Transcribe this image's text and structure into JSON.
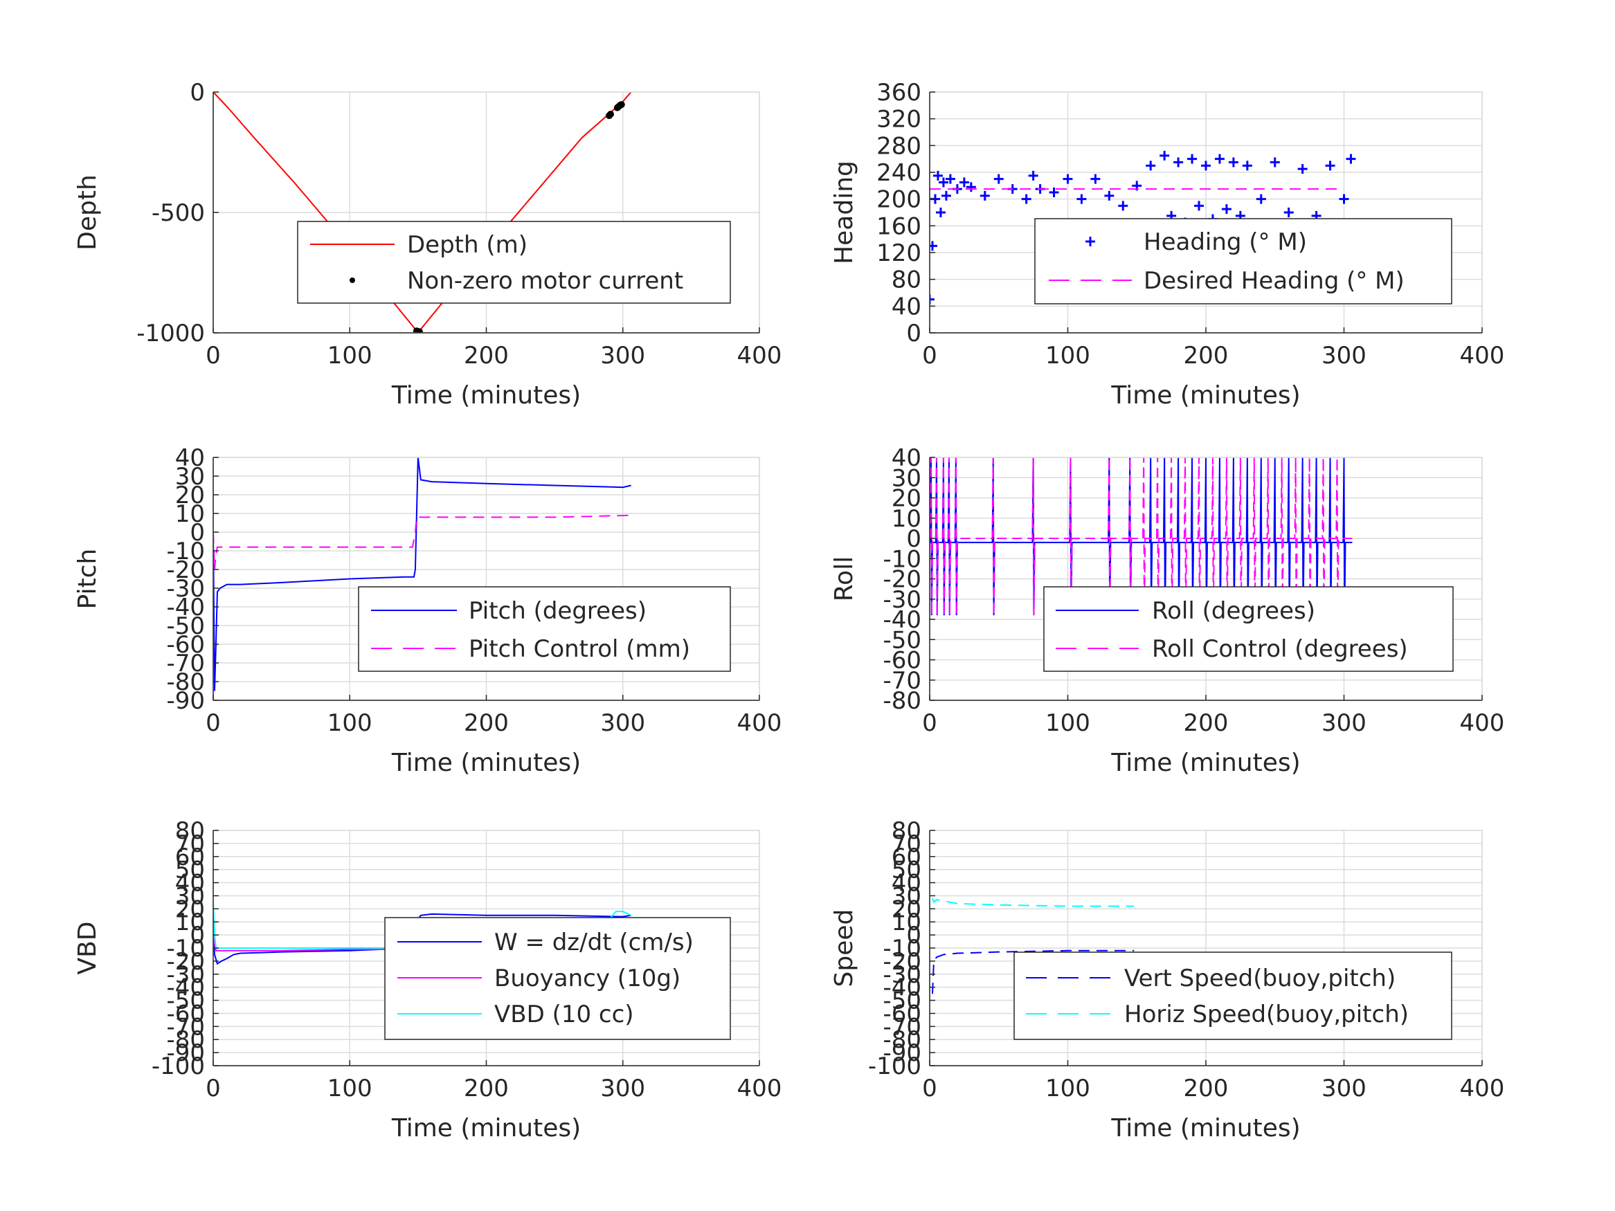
{
  "chart_data": [
    {
      "type": "line",
      "xlabel": "Time (minutes)",
      "ylabel": "Depth",
      "xlim": [
        0,
        400
      ],
      "ylim": [
        -1000,
        0
      ],
      "xticks": [
        0,
        100,
        200,
        300,
        400
      ],
      "yticks": [
        -1000,
        -500,
        0
      ],
      "grid": true,
      "legend": "center-right",
      "series": [
        {
          "name": "Depth (m)",
          "color": "#ff0000",
          "style": "solid",
          "x": [
            0,
            10,
            30,
            60,
            90,
            120,
            148,
            150,
            152,
            180,
            210,
            240,
            270,
            300,
            306
          ],
          "y": [
            0,
            -60,
            -190,
            -380,
            -580,
            -790,
            -985,
            -998,
            -985,
            -790,
            -590,
            -390,
            -190,
            -40,
            0
          ]
        },
        {
          "name": "Non-zero motor current",
          "color": "#000000",
          "style": "marker",
          "x": [
            149,
            150,
            151,
            290,
            291,
            296,
            297,
            298,
            299
          ],
          "y": [
            -992,
            -998,
            -995,
            -98,
            -92,
            -65,
            -60,
            -55,
            -52
          ]
        }
      ]
    },
    {
      "type": "scatter",
      "xlabel": "Time (minutes)",
      "ylabel": "Heading",
      "xlim": [
        0,
        400
      ],
      "ylim": [
        0,
        360
      ],
      "xticks": [
        0,
        100,
        200,
        300,
        400
      ],
      "yticks": [
        0,
        40,
        80,
        120,
        160,
        200,
        240,
        280,
        320,
        360
      ],
      "grid": true,
      "legend": "center-right",
      "series": [
        {
          "name": "Heading (° M)",
          "color": "#0000ff",
          "style": "plus",
          "x": [
            0,
            2,
            4,
            6,
            8,
            10,
            12,
            15,
            20,
            25,
            30,
            40,
            50,
            60,
            70,
            75,
            80,
            90,
            100,
            110,
            120,
            130,
            140,
            150,
            160,
            165,
            170,
            175,
            180,
            185,
            190,
            195,
            200,
            205,
            210,
            215,
            220,
            225,
            230,
            240,
            250,
            260,
            270,
            280,
            290,
            300,
            305
          ],
          "y": [
            50,
            130,
            200,
            235,
            180,
            225,
            205,
            230,
            215,
            225,
            218,
            205,
            230,
            215,
            200,
            235,
            215,
            210,
            230,
            200,
            230,
            205,
            190,
            220,
            250,
            160,
            265,
            175,
            255,
            165,
            260,
            190,
            250,
            170,
            260,
            185,
            255,
            175,
            250,
            200,
            255,
            180,
            245,
            175,
            250,
            200,
            260
          ]
        },
        {
          "name": "Desired Heading (° M)",
          "color": "#ff00ff",
          "style": "dashed",
          "x": [
            0,
            295
          ],
          "y": [
            215,
            215
          ]
        }
      ]
    },
    {
      "type": "line",
      "xlabel": "Time (minutes)",
      "ylabel": "Pitch",
      "xlim": [
        0,
        400
      ],
      "ylim": [
        -90,
        40
      ],
      "xticks": [
        0,
        100,
        200,
        300,
        400
      ],
      "yticks": [
        -90,
        -80,
        -70,
        -60,
        -50,
        -40,
        -30,
        -20,
        -10,
        0,
        10,
        20,
        30,
        40
      ],
      "grid": true,
      "legend": "center-right",
      "series": [
        {
          "name": "Pitch (degrees)",
          "color": "#0000ff",
          "style": "solid",
          "x": [
            0,
            1,
            2,
            3,
            5,
            10,
            20,
            50,
            100,
            140,
            147,
            148,
            149,
            150,
            152,
            160,
            200,
            250,
            300,
            306
          ],
          "y": [
            0,
            -85,
            -60,
            -32,
            -30,
            -28,
            -28,
            -27,
            -25,
            -24,
            -24,
            -20,
            10,
            40,
            28,
            27,
            26,
            25,
            24,
            25
          ]
        },
        {
          "name": "Pitch Control (mm)",
          "color": "#ff00ff",
          "style": "dashed",
          "x": [
            0,
            1,
            2,
            3,
            10,
            50,
            100,
            146,
            148,
            149,
            150,
            155,
            200,
            250,
            306
          ],
          "y": [
            0,
            -20,
            -12,
            -8,
            -8,
            -8,
            -8,
            -8,
            0,
            8,
            8,
            8,
            8,
            8,
            9
          ]
        }
      ]
    },
    {
      "type": "line",
      "xlabel": "Time (minutes)",
      "ylabel": "Roll",
      "xlim": [
        0,
        400
      ],
      "ylim": [
        -80,
        40
      ],
      "xticks": [
        0,
        100,
        200,
        300,
        400
      ],
      "yticks": [
        -80,
        -70,
        -60,
        -50,
        -40,
        -30,
        -20,
        -10,
        0,
        10,
        20,
        30,
        40
      ],
      "grid": true,
      "legend": "bottom-right",
      "series": [
        {
          "name": "Roll (degrees)",
          "color": "#0000ff",
          "style": "solid",
          "spikes": [
            1,
            5,
            10,
            14,
            19,
            46,
            75,
            102,
            130,
            145,
            160,
            170,
            180,
            190,
            200,
            210,
            220,
            230,
            240,
            250,
            260,
            270,
            280,
            290,
            300
          ],
          "baseline": -2
        },
        {
          "name": "Roll Control (degrees)",
          "color": "#ff00ff",
          "style": "dashed",
          "spikes": [
            1,
            5,
            10,
            14,
            19,
            46,
            75,
            102,
            130,
            145,
            155,
            165,
            175,
            185,
            195,
            205,
            215,
            225,
            235,
            245,
            255,
            265,
            275,
            285,
            295
          ],
          "baseline": 0
        }
      ]
    },
    {
      "type": "line",
      "xlabel": "Time (minutes)",
      "ylabel": "VBD",
      "xlim": [
        0,
        400
      ],
      "ylim": [
        -100,
        80
      ],
      "xticks": [
        0,
        100,
        200,
        300,
        400
      ],
      "yticks": [
        -100,
        -90,
        -80,
        -70,
        -60,
        -50,
        -40,
        -30,
        -20,
        -10,
        0,
        10,
        20,
        30,
        40,
        50,
        60,
        70,
        80
      ],
      "grid": true,
      "legend": "center-right",
      "series": [
        {
          "name": "W = dz/dt (cm/s)",
          "color": "#0000ff",
          "style": "solid",
          "x": [
            0,
            1,
            3,
            6,
            10,
            15,
            20,
            50,
            100,
            147,
            149,
            150,
            152,
            160,
            200,
            250,
            300,
            306
          ],
          "y": [
            0,
            -15,
            -22,
            -20,
            -18,
            -15,
            -14,
            -13,
            -12,
            -10,
            -5,
            12,
            15,
            16,
            15,
            15,
            14,
            15
          ]
        },
        {
          "name": "Buoyancy (10g)",
          "color": "#ff00ff",
          "style": "solid",
          "x": [
            0,
            2,
            10,
            50,
            100,
            148,
            150,
            160,
            200,
            250,
            300,
            306
          ],
          "y": [
            0,
            -12,
            -12,
            -12,
            -11,
            -11,
            12,
            12,
            12,
            12,
            12,
            12
          ]
        },
        {
          "name": "VBD (10 cc)",
          "color": "#00ffff",
          "style": "solid",
          "x": [
            0,
            1,
            2,
            10,
            50,
            100,
            148,
            150,
            160,
            200,
            250,
            290,
            295,
            300,
            306
          ],
          "y": [
            25,
            0,
            -10,
            -10,
            -10,
            -10,
            -10,
            12,
            12,
            12,
            12,
            12,
            18,
            18,
            15
          ]
        }
      ]
    },
    {
      "type": "line",
      "xlabel": "Time (minutes)",
      "ylabel": "Speed",
      "xlim": [
        0,
        400
      ],
      "ylim": [
        -100,
        80
      ],
      "xticks": [
        0,
        100,
        200,
        300,
        400
      ],
      "yticks": [
        -100,
        -90,
        -80,
        -70,
        -60,
        -50,
        -40,
        -30,
        -20,
        -10,
        0,
        10,
        20,
        30,
        40,
        50,
        60,
        70,
        80
      ],
      "grid": true,
      "legend": "bottom-right",
      "series": [
        {
          "name": "Vert Speed(buoy,pitch)",
          "color": "#0000ff",
          "style": "dashed",
          "x": [
            2,
            3,
            5,
            10,
            20,
            50,
            100,
            148
          ],
          "y": [
            -45,
            -20,
            -17,
            -15,
            -14,
            -13,
            -12,
            -12
          ]
        },
        {
          "name": "Horiz Speed(buoy,pitch)",
          "color": "#00ffff",
          "style": "dashed",
          "x": [
            2,
            3,
            5,
            10,
            20,
            50,
            100,
            148
          ],
          "y": [
            28,
            25,
            27,
            26,
            24,
            23,
            22,
            22
          ]
        }
      ]
    }
  ]
}
